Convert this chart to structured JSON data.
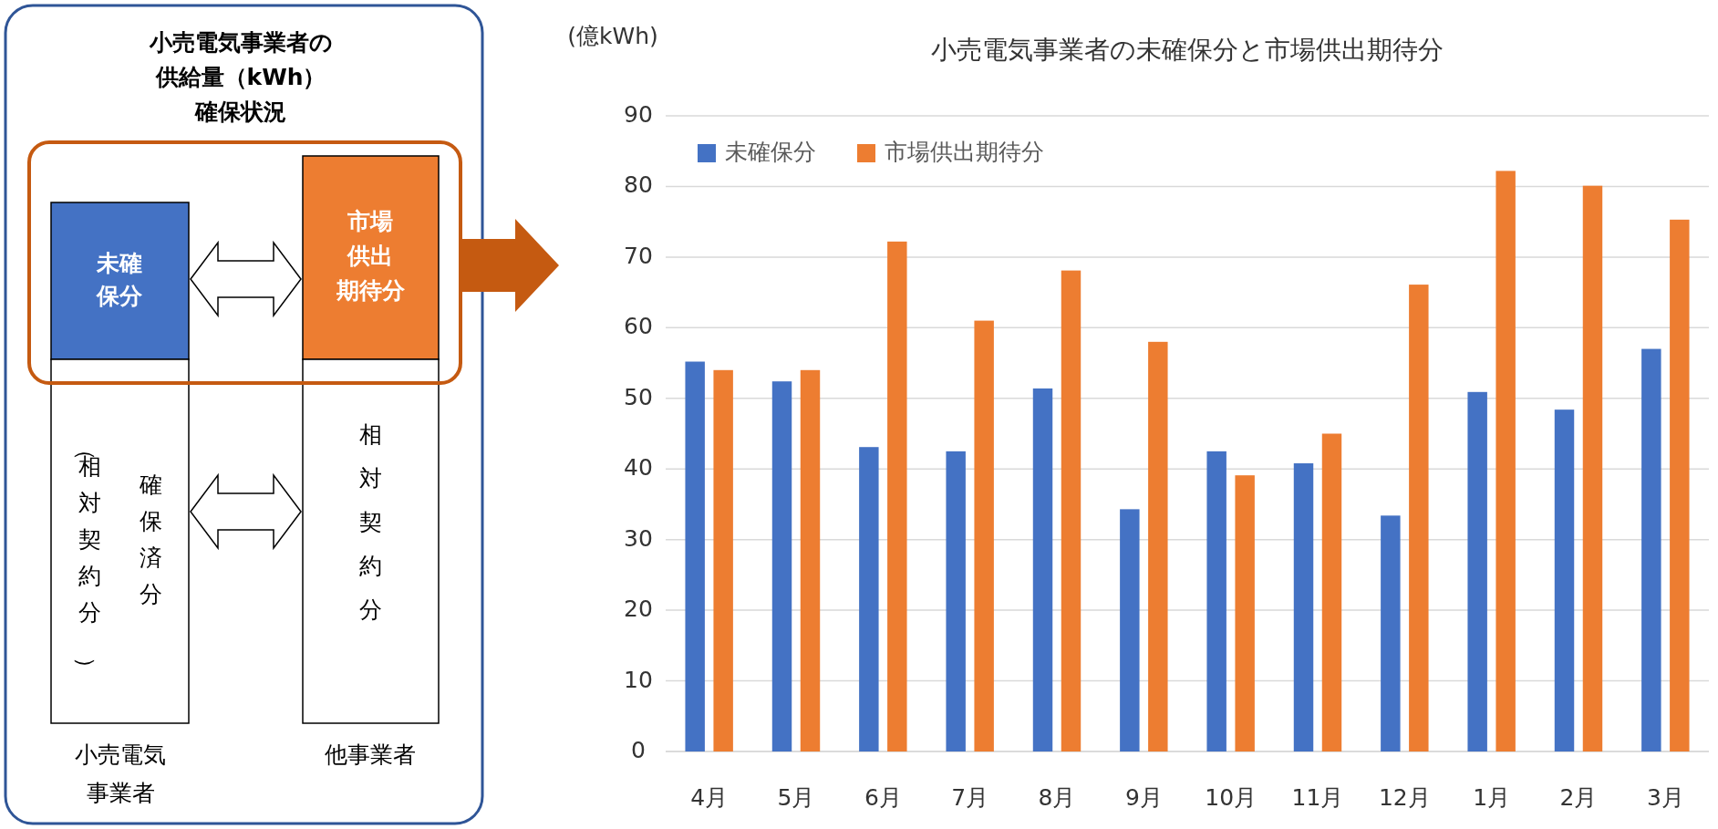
{
  "chart_data": [
    {
      "type": "other",
      "title": "小売電気事業者の供給量（kWh）確保状況",
      "annotations": [
        "未確保分",
        "市場供出期待分",
        "（相対契約分）",
        "確保済分",
        "相対契約分",
        "小売電気事業者",
        "他事業者"
      ]
    },
    {
      "type": "bar",
      "title": "小売電気事業者の未確保分と市場供出期待分",
      "ylabel": "(億kWh)",
      "categories": [
        "4月",
        "5月",
        "6月",
        "7月",
        "8月",
        "9月",
        "10月",
        "11月",
        "12月",
        "1月",
        "2月",
        "3月"
      ],
      "series": [
        {
          "name": "未確保分",
          "color": "#4472c4",
          "values": [
            55.2,
            52.4,
            43.1,
            42.5,
            51.4,
            34.3,
            42.5,
            40.8,
            33.4,
            50.9,
            48.4,
            57.0
          ]
        },
        {
          "name": "市場供出期待分",
          "color": "#ed7d31",
          "values": [
            54.0,
            54.0,
            72.2,
            61.0,
            68.1,
            58.0,
            39.1,
            45.0,
            66.1,
            82.2,
            80.1,
            75.3
          ]
        }
      ],
      "ylim": [
        0,
        90
      ],
      "yticks": [
        0,
        10,
        20,
        30,
        40,
        50,
        60,
        70,
        80,
        90
      ],
      "grid": "y",
      "legend": "top left"
    }
  ]
}
